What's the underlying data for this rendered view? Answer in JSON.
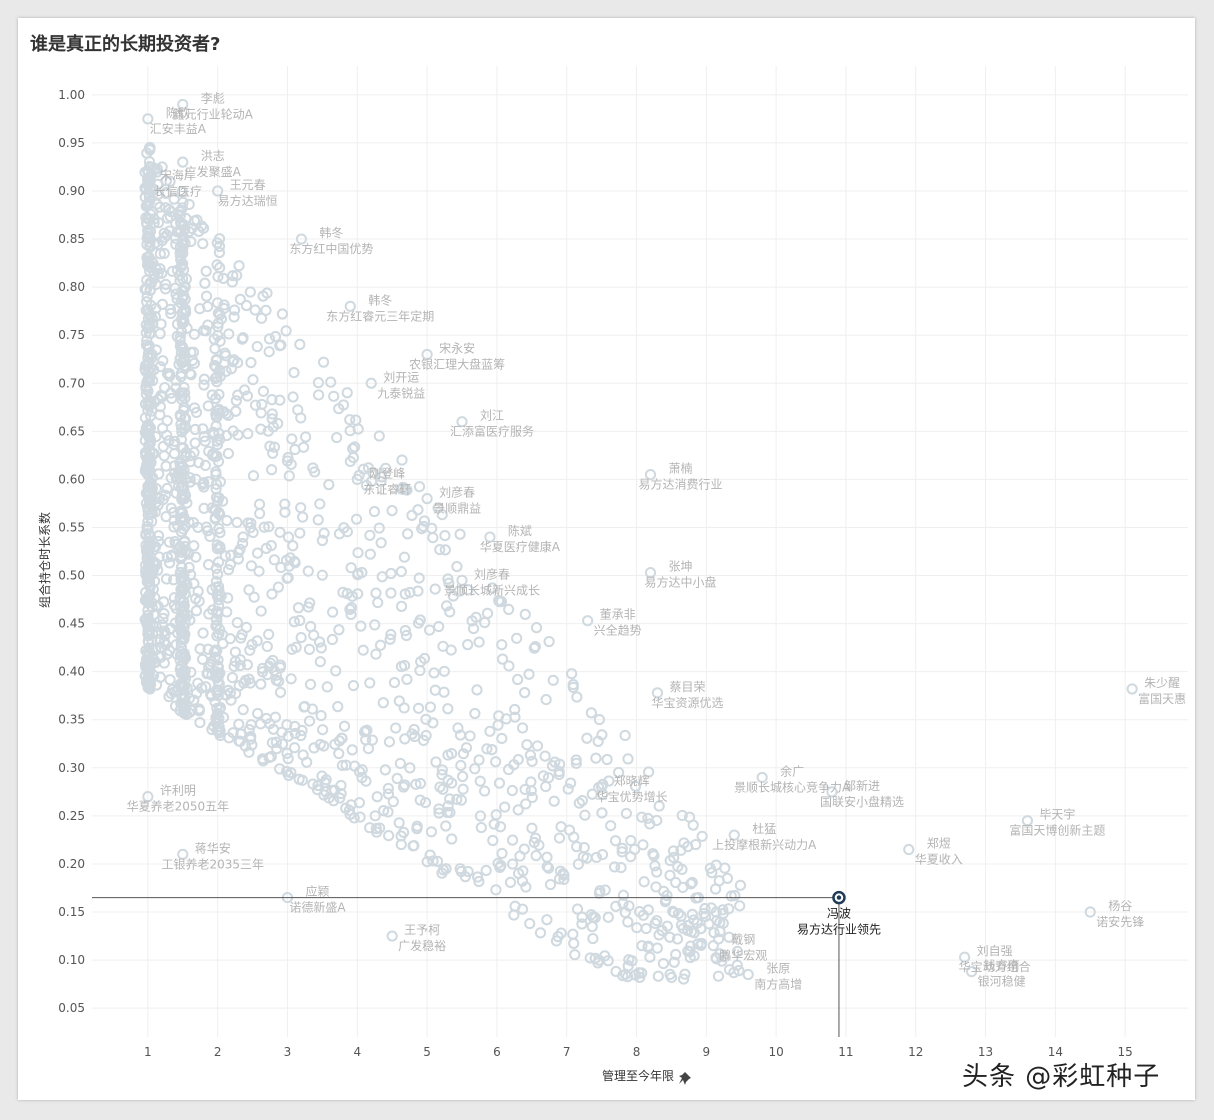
{
  "chart_data": {
    "type": "scatter",
    "title": "谁是真正的长期投资者?",
    "xlabel": "管理至今年限",
    "ylabel": "组合持仓时长系数",
    "xlim": [
      0.2,
      15.9
    ],
    "ylim": [
      0.02,
      1.03
    ],
    "xticks": [
      "1",
      "2",
      "3",
      "4",
      "5",
      "6",
      "7",
      "8",
      "9",
      "10",
      "11",
      "12",
      "13",
      "14",
      "15"
    ],
    "yticks": [
      "0.05",
      "0.10",
      "0.15",
      "0.20",
      "0.25",
      "0.30",
      "0.35",
      "0.40",
      "0.45",
      "0.50",
      "0.55",
      "0.60",
      "0.65",
      "0.70",
      "0.75",
      "0.80",
      "0.85",
      "0.90",
      "0.95",
      "1.00"
    ],
    "grid": true,
    "marker": "hollow-circle",
    "point_color": "#cfd9df",
    "highlight_color": "#1f3b57",
    "highlight": {
      "x": 10.9,
      "y": 0.165,
      "name": "冯波",
      "fund": "易方达行业领先"
    },
    "labeled_points": [
      {
        "x": 1.5,
        "y": 0.99,
        "name": "李彪",
        "fund": "鑫元行业轮动A"
      },
      {
        "x": 1.0,
        "y": 0.975,
        "name": "陈欣",
        "fund": "汇安丰益A"
      },
      {
        "x": 1.5,
        "y": 0.93,
        "name": "洪志",
        "fund": "广发聚盛A"
      },
      {
        "x": 2.0,
        "y": 0.9,
        "name": "王元春",
        "fund": "易方达瑞恒"
      },
      {
        "x": 1.0,
        "y": 0.91,
        "name": "宋海岸",
        "fund": "长信医疗"
      },
      {
        "x": 3.2,
        "y": 0.85,
        "name": "韩冬",
        "fund": "东方红中国优势"
      },
      {
        "x": 3.9,
        "y": 0.78,
        "name": "韩冬",
        "fund": "东方红睿元三年定期"
      },
      {
        "x": 5.0,
        "y": 0.73,
        "name": "宋永安",
        "fund": "农银汇理大盘蓝筹"
      },
      {
        "x": 4.2,
        "y": 0.7,
        "name": "刘开运",
        "fund": "九泰锐益"
      },
      {
        "x": 5.5,
        "y": 0.66,
        "name": "刘江",
        "fund": "汇添富医疗服务"
      },
      {
        "x": 4.0,
        "y": 0.6,
        "name": "刚登峰",
        "fund": "东证睿轩"
      },
      {
        "x": 5.0,
        "y": 0.58,
        "name": "刘彦春",
        "fund": "景顺鼎益"
      },
      {
        "x": 8.2,
        "y": 0.605,
        "name": "萧楠",
        "fund": "易方达消费行业"
      },
      {
        "x": 5.9,
        "y": 0.54,
        "name": "陈斌",
        "fund": "华夏医疗健康A"
      },
      {
        "x": 5.5,
        "y": 0.495,
        "name": "刘彦春",
        "fund": "景顺长城新兴成长"
      },
      {
        "x": 8.2,
        "y": 0.503,
        "name": "张坤",
        "fund": "易方达中小盘"
      },
      {
        "x": 7.3,
        "y": 0.453,
        "name": "董承非",
        "fund": "兴全趋势"
      },
      {
        "x": 8.3,
        "y": 0.378,
        "name": "蔡目荣",
        "fund": "华宝资源优选"
      },
      {
        "x": 15.1,
        "y": 0.382,
        "name": "朱少醒",
        "fund": "富国天惠"
      },
      {
        "x": 9.8,
        "y": 0.29,
        "name": "余广",
        "fund": "景顺长城核心竞争力A"
      },
      {
        "x": 7.5,
        "y": 0.28,
        "name": "郑晓辉",
        "fund": "华宝优势增长"
      },
      {
        "x": 9.4,
        "y": 0.23,
        "name": "杜猛",
        "fund": "上投摩根新兴动力A"
      },
      {
        "x": 10.8,
        "y": 0.275,
        "name": "邹新进",
        "fund": "国联安小盘精选"
      },
      {
        "x": 13.6,
        "y": 0.245,
        "name": "毕天宇",
        "fund": "富国天博创新主题"
      },
      {
        "x": 11.9,
        "y": 0.215,
        "name": "郑煜",
        "fund": "华夏收入"
      },
      {
        "x": 1.0,
        "y": 0.27,
        "name": "许利明",
        "fund": "华夏养老2050五年"
      },
      {
        "x": 1.5,
        "y": 0.21,
        "name": "蒋华安",
        "fund": "工银养老2035三年"
      },
      {
        "x": 3.0,
        "y": 0.165,
        "name": "应颖",
        "fund": "诺德新盛A"
      },
      {
        "x": 4.5,
        "y": 0.125,
        "name": "王予柯",
        "fund": "广发稳裕"
      },
      {
        "x": 9.1,
        "y": 0.115,
        "name": "戴钢",
        "fund": "鹏华宏观"
      },
      {
        "x": 9.6,
        "y": 0.085,
        "name": "张原",
        "fund": "南方高增"
      },
      {
        "x": 12.7,
        "y": 0.103,
        "name": "刘自强",
        "fund": "华宝动力组合"
      },
      {
        "x": 12.8,
        "y": 0.088,
        "name": "钱睿南",
        "fund": "银河稳健"
      },
      {
        "x": 14.5,
        "y": 0.15,
        "name": "杨谷",
        "fund": "诺安先锋"
      }
    ]
  },
  "watermark": "头条 @彩虹种子"
}
